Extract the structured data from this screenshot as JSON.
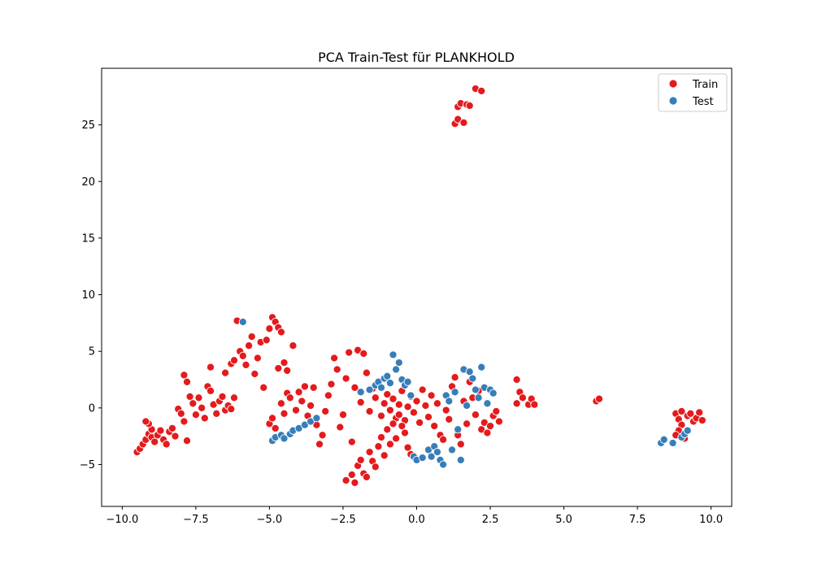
{
  "chart_data": {
    "type": "scatter",
    "title": "PCA Train-Test für PLANKHOLD",
    "xlabel": "",
    "ylabel": "",
    "xlim": [
      -10.7,
      10.7
    ],
    "ylim": [
      -8.7,
      30.0
    ],
    "xticks": [
      -10.0,
      -7.5,
      -5.0,
      -2.5,
      0.0,
      2.5,
      5.0,
      7.5,
      10.0
    ],
    "xtick_labels": [
      "−10.0",
      "−7.5",
      "−5.0",
      "−2.5",
      "0.0",
      "2.5",
      "5.0",
      "7.5",
      "10.0"
    ],
    "yticks": [
      -5,
      0,
      5,
      10,
      15,
      20,
      25
    ],
    "ytick_labels": [
      "−5",
      "0",
      "5",
      "10",
      "15",
      "20",
      "25"
    ],
    "grid": false,
    "legend_position": "top-right",
    "series": [
      {
        "name": "Train",
        "color": "#e41a1c",
        "points": [
          [
            -9.5,
            -3.9
          ],
          [
            -9.4,
            -3.6
          ],
          [
            -9.3,
            -3.2
          ],
          [
            -9.2,
            -2.8
          ],
          [
            -9.1,
            -2.3
          ],
          [
            -9.0,
            -1.9
          ],
          [
            -9.1,
            -1.4
          ],
          [
            -9.2,
            -1.2
          ],
          [
            -9.0,
            -2.6
          ],
          [
            -8.9,
            -3.0
          ],
          [
            -8.8,
            -2.4
          ],
          [
            -8.7,
            -2.0
          ],
          [
            -8.6,
            -2.8
          ],
          [
            -8.5,
            -3.2
          ],
          [
            -8.4,
            -2.1
          ],
          [
            -8.3,
            -1.8
          ],
          [
            -8.2,
            -2.5
          ],
          [
            -8.1,
            -0.1
          ],
          [
            -8.0,
            -0.5
          ],
          [
            -7.9,
            -1.2
          ],
          [
            -7.8,
            -2.9
          ],
          [
            -7.9,
            2.9
          ],
          [
            -7.8,
            2.3
          ],
          [
            -7.7,
            1.0
          ],
          [
            -7.6,
            0.4
          ],
          [
            -7.5,
            -0.6
          ],
          [
            -7.4,
            0.9
          ],
          [
            -7.3,
            0.0
          ],
          [
            -7.2,
            -0.9
          ],
          [
            -7.1,
            1.9
          ],
          [
            -7.0,
            1.5
          ],
          [
            -7.0,
            3.6
          ],
          [
            -6.9,
            0.3
          ],
          [
            -6.8,
            -0.5
          ],
          [
            -6.7,
            0.6
          ],
          [
            -6.6,
            1.0
          ],
          [
            -6.5,
            -0.2
          ],
          [
            -6.4,
            0.2
          ],
          [
            -6.5,
            3.1
          ],
          [
            -6.3,
            -0.1
          ],
          [
            -6.2,
            0.9
          ],
          [
            -6.3,
            3.9
          ],
          [
            -6.2,
            4.2
          ],
          [
            -6.1,
            7.7
          ],
          [
            -6.0,
            5.0
          ],
          [
            -5.9,
            4.6
          ],
          [
            -5.8,
            3.8
          ],
          [
            -5.7,
            5.5
          ],
          [
            -5.6,
            6.3
          ],
          [
            -5.5,
            3.0
          ],
          [
            -5.4,
            4.4
          ],
          [
            -5.3,
            5.8
          ],
          [
            -5.2,
            1.8
          ],
          [
            -5.1,
            6.0
          ],
          [
            -5.0,
            7.0
          ],
          [
            -4.9,
            8.0
          ],
          [
            -4.8,
            7.6
          ],
          [
            -4.7,
            7.1
          ],
          [
            -4.6,
            6.7
          ],
          [
            -4.7,
            3.5
          ],
          [
            -4.5,
            4.0
          ],
          [
            -4.4,
            3.3
          ],
          [
            -4.2,
            5.5
          ],
          [
            -5.0,
            -1.4
          ],
          [
            -4.9,
            -0.9
          ],
          [
            -4.8,
            -1.8
          ],
          [
            -4.6,
            0.4
          ],
          [
            -4.5,
            -0.5
          ],
          [
            -4.4,
            1.3
          ],
          [
            -4.3,
            0.9
          ],
          [
            -4.1,
            -0.2
          ],
          [
            -4.0,
            1.4
          ],
          [
            -3.9,
            0.6
          ],
          [
            -3.8,
            1.9
          ],
          [
            -3.7,
            -0.7
          ],
          [
            -3.6,
            0.2
          ],
          [
            -3.5,
            1.8
          ],
          [
            -3.4,
            -1.5
          ],
          [
            -3.3,
            -3.2
          ],
          [
            -3.2,
            -2.4
          ],
          [
            -3.1,
            -0.3
          ],
          [
            -3.0,
            1.1
          ],
          [
            -2.9,
            2.1
          ],
          [
            -2.8,
            4.4
          ],
          [
            -2.7,
            3.4
          ],
          [
            -2.6,
            -1.7
          ],
          [
            -2.5,
            -0.6
          ],
          [
            -2.4,
            2.6
          ],
          [
            -2.3,
            4.9
          ],
          [
            -2.2,
            -3.0
          ],
          [
            -2.1,
            1.8
          ],
          [
            -2.0,
            5.1
          ],
          [
            -1.9,
            0.5
          ],
          [
            -1.8,
            4.8
          ],
          [
            -1.7,
            3.1
          ],
          [
            -1.6,
            -0.3
          ],
          [
            -1.5,
            1.7
          ],
          [
            -1.4,
            0.9
          ],
          [
            -1.3,
            2.1
          ],
          [
            -1.2,
            -0.7
          ],
          [
            -1.1,
            0.4
          ],
          [
            -1.0,
            1.2
          ],
          [
            -0.9,
            -0.2
          ],
          [
            -0.8,
            0.8
          ],
          [
            -0.7,
            -0.9
          ],
          [
            -0.6,
            0.3
          ],
          [
            -0.5,
            1.5
          ],
          [
            -0.4,
            -1.1
          ],
          [
            -0.3,
            0.1
          ],
          [
            -0.2,
            1.0
          ],
          [
            -0.1,
            -0.4
          ],
          [
            0.0,
            0.6
          ],
          [
            0.1,
            -1.3
          ],
          [
            0.2,
            1.6
          ],
          [
            0.3,
            0.2
          ],
          [
            0.4,
            -0.8
          ],
          [
            0.5,
            1.1
          ],
          [
            0.6,
            -1.6
          ],
          [
            0.7,
            0.4
          ],
          [
            0.8,
            -2.4
          ],
          [
            0.9,
            -2.8
          ],
          [
            1.0,
            -0.2
          ],
          [
            1.1,
            -1.0
          ],
          [
            1.2,
            1.9
          ],
          [
            1.3,
            2.7
          ],
          [
            1.4,
            -2.4
          ],
          [
            1.5,
            -3.2
          ],
          [
            1.6,
            0.6
          ],
          [
            1.7,
            -1.4
          ],
          [
            1.8,
            2.3
          ],
          [
            1.9,
            0.9
          ],
          [
            2.0,
            -0.6
          ],
          [
            2.1,
            1.5
          ],
          [
            2.2,
            -1.9
          ],
          [
            2.3,
            -1.3
          ],
          [
            2.4,
            -2.2
          ],
          [
            2.5,
            -1.6
          ],
          [
            2.6,
            -0.7
          ],
          [
            2.7,
            -0.3
          ],
          [
            2.8,
            -1.2
          ],
          [
            -2.4,
            -6.4
          ],
          [
            -2.2,
            -5.9
          ],
          [
            -2.1,
            -6.6
          ],
          [
            -2.0,
            -5.1
          ],
          [
            -1.9,
            -4.6
          ],
          [
            -1.8,
            -5.8
          ],
          [
            -1.7,
            -6.1
          ],
          [
            -1.6,
            -3.9
          ],
          [
            -1.5,
            -4.7
          ],
          [
            -1.4,
            -5.2
          ],
          [
            -1.3,
            -3.4
          ],
          [
            -1.2,
            -2.6
          ],
          [
            -1.1,
            -4.2
          ],
          [
            -1.0,
            -1.9
          ],
          [
            -0.9,
            -3.2
          ],
          [
            -0.8,
            -1.4
          ],
          [
            -0.7,
            -2.7
          ],
          [
            -0.6,
            -0.6
          ],
          [
            -0.5,
            -1.6
          ],
          [
            -0.4,
            -2.2
          ],
          [
            -0.3,
            -3.5
          ],
          [
            -0.2,
            -4.1
          ],
          [
            3.4,
            2.5
          ],
          [
            3.5,
            1.4
          ],
          [
            3.6,
            0.9
          ],
          [
            3.4,
            0.4
          ],
          [
            3.8,
            0.3
          ],
          [
            3.9,
            0.8
          ],
          [
            4.0,
            0.3
          ],
          [
            6.1,
            0.6
          ],
          [
            6.2,
            0.8
          ],
          [
            8.8,
            -0.5
          ],
          [
            8.9,
            -1.0
          ],
          [
            9.0,
            -0.3
          ],
          [
            9.0,
            -1.5
          ],
          [
            9.1,
            -2.7
          ],
          [
            9.2,
            -0.7
          ],
          [
            9.3,
            -0.5
          ],
          [
            9.4,
            -1.2
          ],
          [
            9.5,
            -0.9
          ],
          [
            9.6,
            -0.4
          ],
          [
            9.7,
            -1.1
          ],
          [
            8.9,
            -2.0
          ],
          [
            8.8,
            -2.4
          ],
          [
            1.3,
            25.1
          ],
          [
            1.4,
            25.5
          ],
          [
            1.6,
            25.2
          ],
          [
            1.4,
            26.6
          ],
          [
            1.5,
            26.9
          ],
          [
            1.7,
            26.8
          ],
          [
            1.8,
            26.7
          ],
          [
            2.0,
            28.2
          ],
          [
            2.2,
            28.0
          ]
        ]
      },
      {
        "name": "Test",
        "color": "#377eb8",
        "points": [
          [
            -5.9,
            7.6
          ],
          [
            -4.9,
            -2.9
          ],
          [
            -4.8,
            -2.6
          ],
          [
            -4.6,
            -2.4
          ],
          [
            -4.5,
            -2.7
          ],
          [
            -4.3,
            -2.3
          ],
          [
            -4.2,
            -2.0
          ],
          [
            -4.0,
            -1.8
          ],
          [
            -3.8,
            -1.5
          ],
          [
            -3.6,
            -1.2
          ],
          [
            -3.4,
            -0.9
          ],
          [
            -1.9,
            1.4
          ],
          [
            -1.6,
            1.6
          ],
          [
            -1.4,
            2.0
          ],
          [
            -1.3,
            2.3
          ],
          [
            -1.2,
            1.8
          ],
          [
            -1.1,
            2.6
          ],
          [
            -1.0,
            2.8
          ],
          [
            -0.9,
            2.2
          ],
          [
            -0.8,
            4.7
          ],
          [
            -0.7,
            3.4
          ],
          [
            -0.6,
            4.0
          ],
          [
            -0.5,
            2.5
          ],
          [
            -0.4,
            2.0
          ],
          [
            -0.3,
            2.3
          ],
          [
            -0.2,
            1.1
          ],
          [
            -0.1,
            -4.3
          ],
          [
            0.0,
            -4.6
          ],
          [
            0.2,
            -4.4
          ],
          [
            0.4,
            -3.7
          ],
          [
            0.5,
            -4.3
          ],
          [
            0.6,
            -3.4
          ],
          [
            0.7,
            -3.9
          ],
          [
            0.8,
            -4.6
          ],
          [
            0.9,
            -5.0
          ],
          [
            1.0,
            1.1
          ],
          [
            1.1,
            0.6
          ],
          [
            1.2,
            -3.7
          ],
          [
            1.3,
            1.4
          ],
          [
            1.4,
            -1.9
          ],
          [
            1.5,
            -4.6
          ],
          [
            1.6,
            3.4
          ],
          [
            1.7,
            0.2
          ],
          [
            1.8,
            3.2
          ],
          [
            1.9,
            2.6
          ],
          [
            2.0,
            1.6
          ],
          [
            2.1,
            0.9
          ],
          [
            2.2,
            3.6
          ],
          [
            2.3,
            1.8
          ],
          [
            2.4,
            0.4
          ],
          [
            2.5,
            1.6
          ],
          [
            2.6,
            1.3
          ],
          [
            8.3,
            -3.1
          ],
          [
            8.4,
            -2.8
          ],
          [
            8.7,
            -3.1
          ],
          [
            9.0,
            -2.6
          ],
          [
            9.1,
            -2.3
          ],
          [
            9.2,
            -2.0
          ]
        ]
      }
    ]
  }
}
